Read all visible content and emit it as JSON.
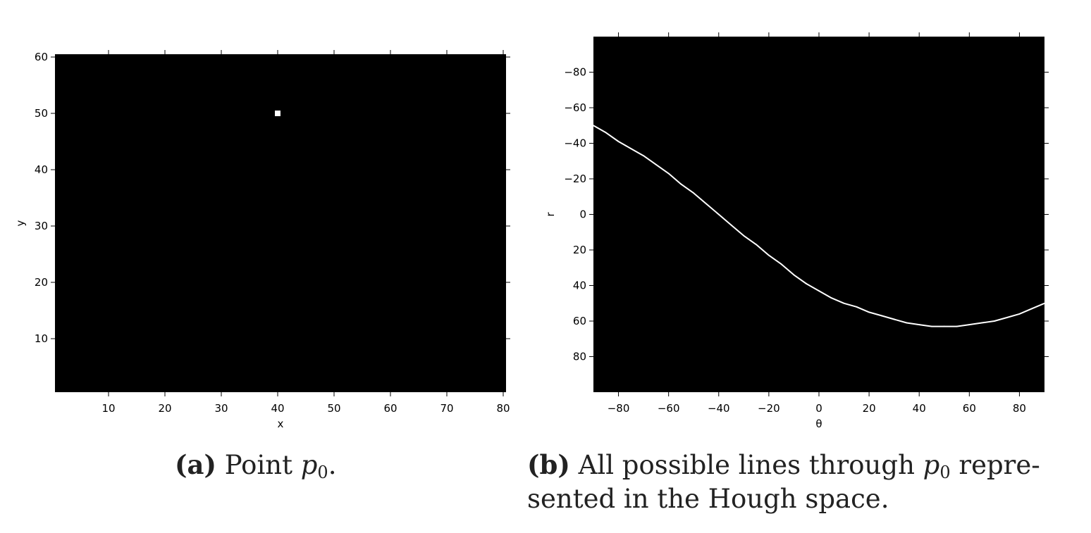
{
  "chart_data": [
    {
      "type": "heatmap",
      "xlabel": "x",
      "ylabel": "y",
      "xlim": [
        0.5,
        80.5
      ],
      "ylim": [
        0.5,
        60.5
      ],
      "xticks": [
        10,
        20,
        30,
        40,
        50,
        60,
        70,
        80
      ],
      "yticks": [
        10,
        20,
        30,
        40,
        50,
        60
      ],
      "background": "#000000",
      "foreground": "#ffffff",
      "points": [
        {
          "x": 40,
          "y": 50
        }
      ]
    },
    {
      "type": "line",
      "xlabel": "θ",
      "ylabel": "r",
      "xlim": [
        -90,
        90
      ],
      "ylim": [
        -100,
        100
      ],
      "y_inverted": true,
      "xticks": [
        -80,
        -60,
        -40,
        -20,
        0,
        20,
        40,
        60,
        80
      ],
      "yticks": [
        -80,
        -60,
        -40,
        -20,
        0,
        20,
        40,
        60,
        80
      ],
      "background": "#000000",
      "line_color": "#ffffff",
      "series": [
        {
          "x": [
            -90,
            -85,
            -80,
            -75,
            -70,
            -65,
            -60,
            -55,
            -50,
            -45,
            -40,
            -35,
            -30,
            -25,
            -20,
            -15,
            -10,
            -5,
            0,
            5,
            10,
            15,
            20,
            25,
            30,
            35,
            40,
            45,
            50,
            55,
            60,
            65,
            70,
            75,
            80,
            85,
            90
          ],
          "y": [
            -50,
            -46,
            -41,
            -37,
            -33,
            -28,
            -23,
            -17,
            -12,
            -6,
            0,
            6,
            12,
            17,
            23,
            28,
            34,
            39,
            43,
            47,
            50,
            52,
            55,
            57,
            59,
            61,
            62,
            63,
            63,
            63,
            62,
            61,
            60,
            58,
            56,
            53,
            50
          ]
        }
      ]
    }
  ],
  "captions": [
    {
      "label": "(a)",
      "text_before": "Point ",
      "var": "p",
      "sub": "0",
      "text_after": "."
    },
    {
      "label": "(b)",
      "text_before": "All possible lines through ",
      "var": "p",
      "sub": "0",
      "text_after": " repre-",
      "line2": "sented in the Hough space."
    }
  ]
}
